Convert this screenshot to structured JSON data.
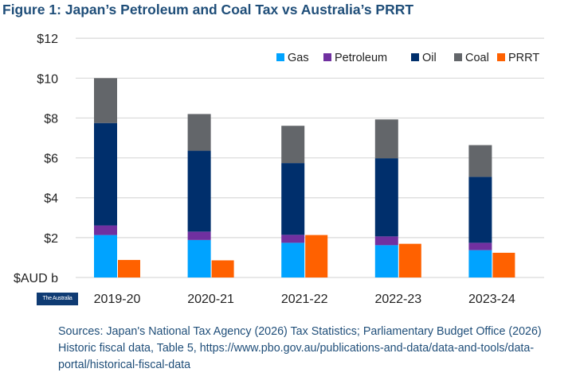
{
  "title": "Figure 1: Japan’s Petroleum and Coal Tax vs Australia’s PRRT",
  "logo_text": "The Australia Institute",
  "sources": "Sources: Japan's National Tax Agency (2026) Tax Statistics; Parliamentary Budget Office (2026) Historic fiscal data, Table 5, https://www.pbo.gov.au/publications-and-data/data-and-tools/data-portal/historical-fiscal-data",
  "chart_data": {
    "type": "bar",
    "stacked": true,
    "title": "Figure 1: Japan’s Petroleum and Coal Tax vs Australia’s PRRT",
    "ylabel": "$AUD b",
    "ylim": [
      0,
      12
    ],
    "yticks": [
      "$AUD b",
      "$2",
      "$4",
      "$6",
      "$8",
      "$10",
      "$12"
    ],
    "grid": true,
    "legend": "top-right",
    "categories": [
      "2019-20",
      "2020-21",
      "2021-22",
      "2022-23",
      "2023-24"
    ],
    "series": [
      {
        "name": "Gas",
        "stack": "japan",
        "color": "#00a3ff",
        "values": [
          2.13,
          1.88,
          1.74,
          1.62,
          1.37
        ]
      },
      {
        "name": "Petroleum",
        "stack": "japan",
        "color": "#7030a0",
        "values": [
          0.48,
          0.42,
          0.4,
          0.44,
          0.37
        ]
      },
      {
        "name": "Oil",
        "stack": "japan",
        "color": "#002f6c",
        "values": [
          5.14,
          4.06,
          3.6,
          3.92,
          3.31
        ]
      },
      {
        "name": "Coal",
        "stack": "japan",
        "color": "#63666a",
        "values": [
          2.25,
          1.84,
          1.87,
          1.95,
          1.59
        ]
      },
      {
        "name": "PRRT",
        "stack": "australia",
        "color": "#ff6100",
        "values": [
          0.88,
          0.86,
          2.13,
          1.69,
          1.24
        ]
      }
    ]
  }
}
